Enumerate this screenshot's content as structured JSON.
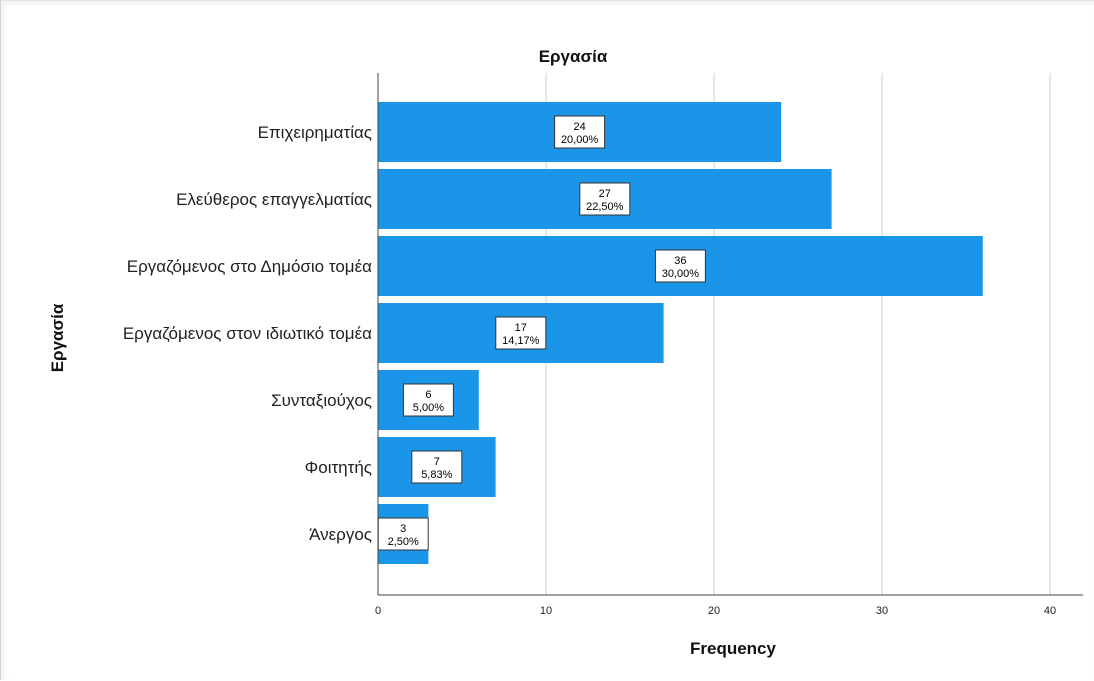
{
  "chart_data": {
    "type": "bar",
    "orientation": "horizontal",
    "title": "Εργασία",
    "xlabel": "Frequency",
    "ylabel": "Εργασία",
    "xlim": [
      0,
      40
    ],
    "xticks": [
      0,
      10,
      20,
      30,
      40
    ],
    "grid": "vertical",
    "bar_color": "#1a95e8",
    "categories": [
      "Επιχειρηματίας",
      "Ελεύθερος επαγγελματίας",
      "Εργαζόμενος στο Δημόσιο τομέα",
      "Εργαζόμενος στον ιδιωτικό τομέα",
      "Συνταξιούχος",
      "Φοιτητής",
      "Άνεργος"
    ],
    "values": [
      24,
      27,
      36,
      17,
      6,
      7,
      3
    ],
    "percent_labels": [
      "20,00%",
      "22,50%",
      "30,00%",
      "14,17%",
      "5,00%",
      "5,83%",
      "2,50%"
    ]
  }
}
